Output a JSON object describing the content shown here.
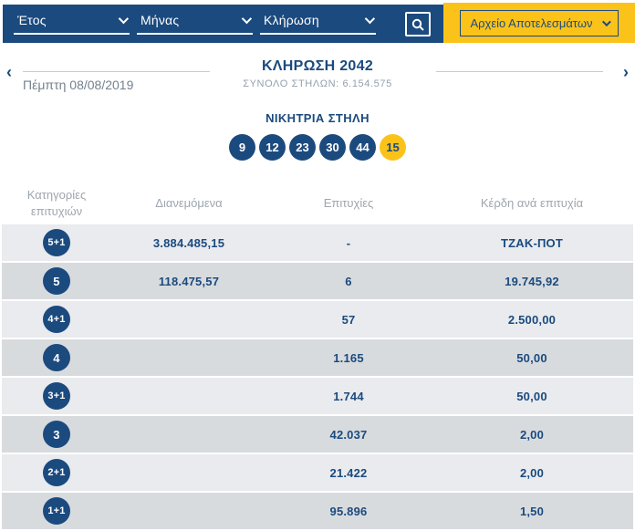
{
  "filters": {
    "year_label": "Έτος",
    "month_label": "Μήνας",
    "draw_label": "Κλήρωση",
    "archive_button_label": "Αρχείο Αποτελεσμάτων"
  },
  "draw_header": {
    "title": "ΚΛΗΡΩΣΗ 2042",
    "subtitle": "ΣΥΝΟΛΟ ΣΤΗΛΩΝ: 6.154.575",
    "date": "Πέμπτη 08/08/2019",
    "prev_symbol": "‹",
    "next_symbol": "›"
  },
  "winning_column": {
    "label": "ΝΙΚΗΤΡΙΑ ΣΤΗΛΗ",
    "numbers": [
      "9",
      "12",
      "23",
      "30",
      "44"
    ],
    "bonus_number": "15"
  },
  "results_table": {
    "headers": [
      "Κατηγορίες επιτυχιών",
      "Διανεμόμενα",
      "Επιτυχίες",
      "Κέρδη ανά επιτυχία"
    ],
    "rows": [
      {
        "category": "5+1",
        "distributed": "3.884.485,15",
        "winners": "-",
        "payout": "ΤΖΑΚ-ΠΟΤ"
      },
      {
        "category": "5",
        "distributed": "118.475,57",
        "winners": "6",
        "payout": "19.745,92"
      },
      {
        "category": "4+1",
        "distributed": "",
        "winners": "57",
        "payout": "2.500,00"
      },
      {
        "category": "4",
        "distributed": "",
        "winners": "1.165",
        "payout": "50,00"
      },
      {
        "category": "3+1",
        "distributed": "",
        "winners": "1.744",
        "payout": "50,00"
      },
      {
        "category": "3",
        "distributed": "",
        "winners": "42.037",
        "payout": "2,00"
      },
      {
        "category": "2+1",
        "distributed": "",
        "winners": "21.422",
        "payout": "2,00"
      },
      {
        "category": "1+1",
        "distributed": "",
        "winners": "95.896",
        "payout": "1,50"
      }
    ]
  },
  "colors": {
    "navy": "#1b4a7e",
    "yellow": "#fbc31a",
    "row_light": "#e9ebee",
    "row_dark": "#d8dbde",
    "header_text": "#9ea6ae"
  }
}
